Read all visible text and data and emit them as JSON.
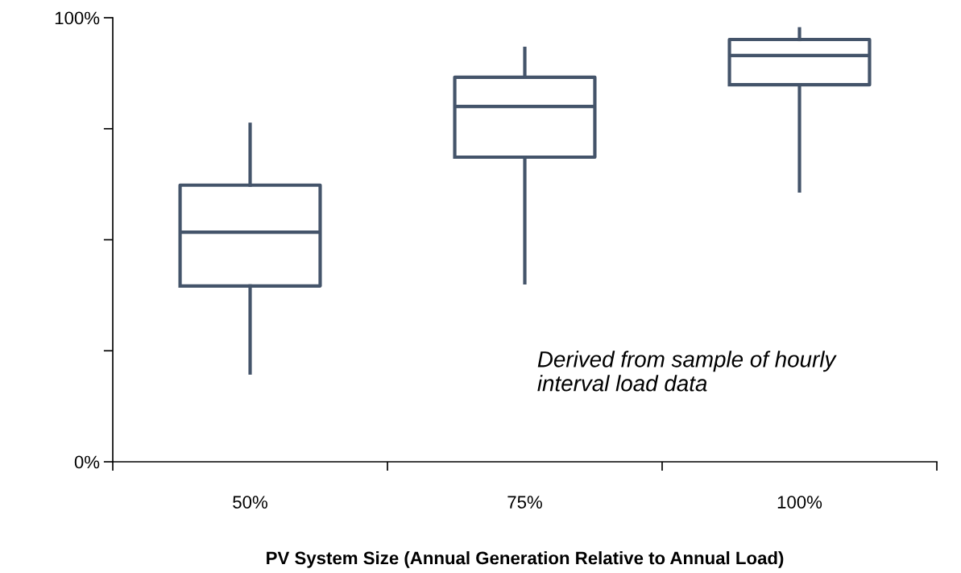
{
  "chart_data": {
    "type": "box",
    "xlabel": "PV System Size (Annual Generation Relative to Annual Load)",
    "categories": [
      "50%",
      "75%",
      "100%"
    ],
    "series": [
      {
        "color": "#44546a",
        "boxes": [
          {
            "low": 20,
            "q1": 39.6,
            "median": 51.7,
            "q3": 62.3,
            "high": 76
          },
          {
            "low": 40.3,
            "q1": 68.6,
            "median": 80,
            "q3": 86.6,
            "high": 93.1
          },
          {
            "low": 61,
            "q1": 84.9,
            "median": 91.5,
            "q3": 95.1,
            "high": 97.5
          }
        ]
      }
    ],
    "ylim": [
      0,
      100
    ],
    "yticks": [
      {
        "value": 0,
        "label": "0%"
      },
      {
        "value": 25,
        "label": null
      },
      {
        "value": 50,
        "label": null
      },
      {
        "value": 75,
        "label": null
      },
      {
        "value": 100,
        "label": "100%"
      }
    ],
    "grid": false,
    "annotations": [
      "Derived from sample of hourly\ninterval load data"
    ]
  }
}
